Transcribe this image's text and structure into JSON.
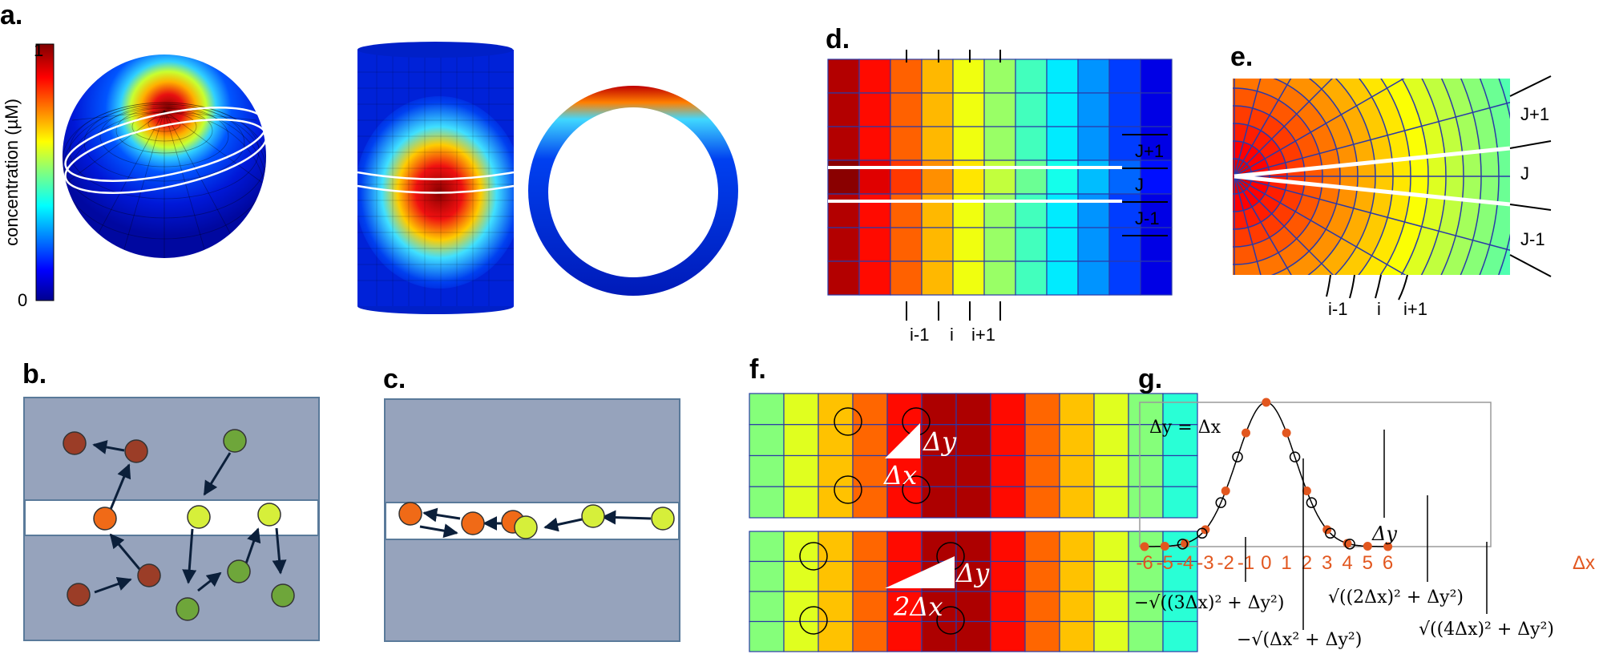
{
  "panels": {
    "a": {
      "label": "a.",
      "colorbar": {
        "title": "concentration (µM)",
        "max": "1",
        "min": "0"
      }
    },
    "b": {
      "label": "b."
    },
    "c": {
      "label": "c."
    },
    "d": {
      "label": "d.",
      "cols": [
        "i-1",
        "i",
        "i+1"
      ],
      "rows": [
        "J+1",
        "J",
        "J-1"
      ]
    },
    "e": {
      "label": "e.",
      "cols": [
        "i-1",
        "i",
        "i+1"
      ],
      "rows": [
        "J+1",
        "J",
        "J-1"
      ]
    },
    "f": {
      "label": "f.",
      "top": {
        "dy": "Δy",
        "dx": "Δx"
      },
      "bottom": {
        "dy": "Δy",
        "dx": "2Δx"
      }
    },
    "g": {
      "label": "g.",
      "condition": "Δy = Δx",
      "x_ticks": [
        "-6",
        "-5",
        "-4",
        "-3",
        "-2",
        "-1",
        "0",
        "1",
        "2",
        "3",
        "4",
        "5",
        "6"
      ],
      "x_axis_label": "Δx",
      "annotations": {
        "dy": "Δy",
        "n3": "−√((3Δx)² + Δy²)",
        "n1": "−√(Δx² + Δy²)",
        "p2": "√((2Δx)² + Δy²)",
        "p4": "√((4Δx)² + Δy²)"
      }
    }
  },
  "colors": {
    "particle_red": "#9b3d27",
    "particle_orange": "#f06a17",
    "particle_lime": "#d6ef3a",
    "particle_green": "#6ea63a",
    "membrane": "#96a3bc",
    "grid_line": "#2a3aa8",
    "orange_text": "#e2571f"
  }
}
